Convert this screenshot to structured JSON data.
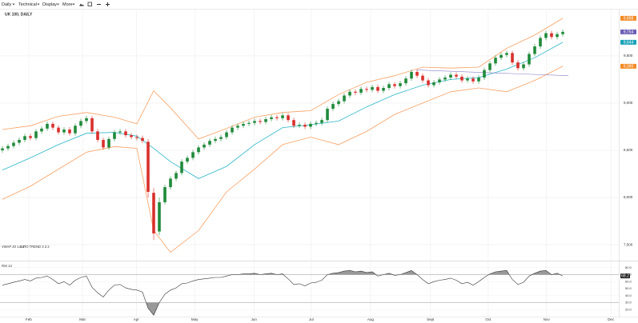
{
  "toolbar": {
    "items": [
      "Daily",
      "Technical",
      "Display",
      "More"
    ]
  },
  "chart_data": [
    {
      "type": "candlestick",
      "title": "UK 100, DAILY",
      "indicator_labels": [
        "VWAP 20 1 2 3",
        "AUTO TREND 3 3 2"
      ],
      "up_color": "#1f8a3a",
      "down_color": "#d9302c",
      "open": [
        8500,
        8520,
        8545,
        8580,
        8610,
        8650,
        8630,
        8700,
        8730,
        8780,
        8740,
        8690,
        8720,
        8680,
        8760,
        8810,
        8840,
        8700,
        8610,
        8530,
        8620,
        8690,
        8700,
        8660,
        8640,
        8630,
        8590,
        8050,
        7640,
        7950,
        8110,
        8200,
        8260,
        8380,
        8420,
        8480,
        8530,
        8560,
        8600,
        8620,
        8640,
        8690,
        8740,
        8760,
        8780,
        8790,
        8810,
        8800,
        8830,
        8850,
        8840,
        8870,
        8820,
        8760,
        8770,
        8750,
        8780,
        8790,
        8820,
        8940,
        8990,
        9020,
        9080,
        9120,
        9110,
        9150,
        9140,
        9170,
        9130,
        9160,
        9200,
        9180,
        9210,
        9260,
        9330,
        9290,
        9240,
        9190,
        9220,
        9250,
        9270,
        9300,
        9280,
        9240,
        9260,
        9230,
        9270,
        9350,
        9420,
        9480,
        9510,
        9530,
        9430,
        9370,
        9410,
        9520,
        9600,
        9690,
        9740,
        9700,
        9730
      ],
      "high": [
        8545,
        8570,
        8605,
        8635,
        8675,
        8675,
        8725,
        8755,
        8805,
        8805,
        8765,
        8745,
        8745,
        8785,
        8835,
        8865,
        8865,
        8725,
        8635,
        8645,
        8715,
        8725,
        8725,
        8685,
        8665,
        8655,
        8620,
        8100,
        8000,
        8135,
        8225,
        8285,
        8405,
        8445,
        8505,
        8555,
        8585,
        8625,
        8645,
        8665,
        8715,
        8765,
        8785,
        8805,
        8815,
        8835,
        8835,
        8855,
        8875,
        8875,
        8895,
        8895,
        8845,
        8795,
        8795,
        8805,
        8815,
        8845,
        8965,
        9015,
        9045,
        9105,
        9145,
        9145,
        9175,
        9175,
        9195,
        9195,
        9185,
        9225,
        9225,
        9235,
        9285,
        9355,
        9355,
        9315,
        9265,
        9245,
        9275,
        9295,
        9325,
        9325,
        9305,
        9285,
        9285,
        9295,
        9375,
        9445,
        9505,
        9535,
        9555,
        9555,
        9455,
        9435,
        9545,
        9625,
        9715,
        9765,
        9765,
        9755,
        9779
      ],
      "low": [
        8475,
        8495,
        8520,
        8555,
        8585,
        8605,
        8605,
        8675,
        8705,
        8715,
        8665,
        8665,
        8655,
        8655,
        8735,
        8785,
        8675,
        8585,
        8505,
        8505,
        8595,
        8665,
        8635,
        8615,
        8605,
        8575,
        8000,
        7550,
        7600,
        7925,
        8085,
        8175,
        8235,
        8355,
        8395,
        8455,
        8505,
        8535,
        8575,
        8595,
        8615,
        8665,
        8715,
        8735,
        8755,
        8765,
        8775,
        8775,
        8805,
        8815,
        8815,
        8795,
        8735,
        8735,
        8725,
        8725,
        8755,
        8765,
        8795,
        8915,
        8965,
        8995,
        9055,
        9085,
        9085,
        9115,
        9115,
        9105,
        9105,
        9135,
        9155,
        9155,
        9185,
        9235,
        9265,
        9215,
        9165,
        9165,
        9195,
        9225,
        9245,
        9255,
        9215,
        9215,
        9205,
        9205,
        9245,
        9325,
        9395,
        9455,
        9485,
        9405,
        9345,
        9345,
        9385,
        9495,
        9575,
        9665,
        9675,
        9675,
        9705
      ],
      "close": [
        8520,
        8545,
        8580,
        8610,
        8650,
        8630,
        8700,
        8730,
        8780,
        8740,
        8690,
        8720,
        8680,
        8760,
        8810,
        8840,
        8700,
        8610,
        8530,
        8620,
        8690,
        8700,
        8660,
        8640,
        8630,
        8600,
        8060,
        7620,
        7950,
        8110,
        8200,
        8260,
        8380,
        8420,
        8480,
        8530,
        8560,
        8600,
        8620,
        8640,
        8690,
        8740,
        8760,
        8780,
        8790,
        8810,
        8800,
        8830,
        8850,
        8840,
        8870,
        8820,
        8760,
        8770,
        8750,
        8780,
        8790,
        8820,
        8940,
        8990,
        9020,
        9080,
        9120,
        9110,
        9150,
        9140,
        9170,
        9130,
        9160,
        9200,
        9180,
        9210,
        9260,
        9330,
        9290,
        9240,
        9190,
        9220,
        9250,
        9270,
        9300,
        9280,
        9240,
        9260,
        9230,
        9270,
        9350,
        9420,
        9480,
        9510,
        9530,
        9430,
        9370,
        9410,
        9520,
        9600,
        9690,
        9740,
        9700,
        9730,
        9754
      ],
      "overlays": [
        {
          "color": "#f9a063",
          "x": [
            0,
            5,
            10,
            15,
            20,
            24,
            27,
            30,
            35,
            40,
            45,
            50,
            55,
            60,
            65,
            70,
            75,
            80,
            85,
            90,
            95,
            100
          ],
          "values": [
            8720,
            8760,
            8860,
            8900,
            8850,
            8780,
            9130,
            8950,
            8620,
            8730,
            8850,
            8900,
            8920,
            9090,
            9220,
            9290,
            9380,
            9370,
            9380,
            9580,
            9720,
            9898
          ]
        },
        {
          "color": "#f9a063",
          "x": [
            0,
            5,
            10,
            15,
            20,
            24,
            27,
            30,
            35,
            40,
            45,
            50,
            55,
            60,
            65,
            70,
            75,
            80,
            85,
            90,
            95,
            100
          ],
          "values": [
            7980,
            8120,
            8300,
            8480,
            8540,
            8520,
            7650,
            7420,
            7650,
            8060,
            8300,
            8560,
            8640,
            8560,
            8700,
            8880,
            9000,
            9120,
            9160,
            9120,
            9240,
            9390
          ]
        },
        {
          "color": "#2bb5c8",
          "x": [
            0,
            5,
            10,
            15,
            20,
            24,
            27,
            30,
            35,
            40,
            45,
            50,
            55,
            60,
            65,
            70,
            75,
            80,
            85,
            90,
            95,
            100
          ],
          "values": [
            8290,
            8420,
            8560,
            8680,
            8690,
            8650,
            8520,
            8380,
            8200,
            8330,
            8560,
            8740,
            8770,
            8810,
            8960,
            9090,
            9190,
            9250,
            9270,
            9360,
            9480,
            9644
          ]
        },
        {
          "color": "#8a7fc9",
          "x": [
            74,
            101
          ],
          "values": [
            9350,
            9290
          ]
        }
      ],
      "price_tags": [
        {
          "value": 9898,
          "label": "9,898",
          "color": "#f28c28"
        },
        {
          "value": 9754,
          "label": "9,754",
          "color": "#6b5fb5"
        },
        {
          "value": 9644,
          "label": "9,644",
          "color": "#1aa3b8"
        },
        {
          "value": 9390,
          "label": "9,390",
          "color": "#f28c28"
        }
      ],
      "xlim": [
        -0.43,
        110
      ],
      "xticks": [
        {
          "value": 4.7,
          "label": "Feb"
        },
        {
          "value": 14.3,
          "label": "Mar"
        },
        {
          "value": 23.9,
          "label": "Apr"
        },
        {
          "value": 34.3,
          "label": "May"
        },
        {
          "value": 44.9,
          "label": "Jun"
        },
        {
          "value": 55.1,
          "label": "Jul"
        },
        {
          "value": 65.7,
          "label": "Aug"
        },
        {
          "value": 76.4,
          "label": "Sept"
        },
        {
          "value": 86.7,
          "label": "Oct"
        },
        {
          "value": 97.1,
          "label": "Nov"
        },
        {
          "value": 108.6,
          "label": "Dec"
        }
      ],
      "ylim": [
        7340,
        9990
      ],
      "yticks": [
        {
          "value": 7500,
          "label": "7,500"
        },
        {
          "value": 8000,
          "label": "8,000"
        },
        {
          "value": 8500,
          "label": "8,500"
        },
        {
          "value": 9000,
          "label": "9,000"
        },
        {
          "value": 9500,
          "label": "9,500"
        }
      ],
      "grid": true
    },
    {
      "type": "line",
      "title": "RSI 14",
      "color": "#333333",
      "values": [
        55,
        57,
        59,
        61,
        63,
        61,
        65,
        66,
        68,
        63,
        57,
        60,
        55,
        62,
        66,
        68,
        52,
        44,
        38,
        48,
        55,
        56,
        51,
        49,
        48,
        45,
        22,
        12,
        30,
        42,
        48,
        51,
        57,
        58,
        61,
        63,
        64,
        65,
        66,
        66,
        68,
        70,
        70,
        71,
        71,
        72,
        70,
        71,
        72,
        70,
        71,
        64,
        56,
        57,
        54,
        58,
        59,
        62,
        70,
        72,
        73,
        75,
        76,
        74,
        75,
        73,
        74,
        68,
        70,
        72,
        69,
        70,
        73,
        76,
        70,
        63,
        57,
        60,
        62,
        63,
        65,
        62,
        57,
        59,
        55,
        60,
        66,
        71,
        74,
        75,
        76,
        63,
        56,
        59,
        68,
        72,
        75,
        76,
        70,
        72,
        68.2
      ],
      "levels": [
        30,
        70
      ],
      "value_tag": {
        "value": 68.2,
        "label": "68.2"
      },
      "ylim": [
        10,
        90
      ],
      "yticks": [
        {
          "value": 20,
          "label": "20.0"
        },
        {
          "value": 30,
          "label": "30.0"
        },
        {
          "value": 40,
          "label": "40.0"
        },
        {
          "value": 50,
          "label": "50.0"
        },
        {
          "value": 60,
          "label": "60.0"
        },
        {
          "value": 70,
          "label": "70.0"
        },
        {
          "value": 80,
          "label": "80.0"
        }
      ],
      "grid": true
    }
  ]
}
